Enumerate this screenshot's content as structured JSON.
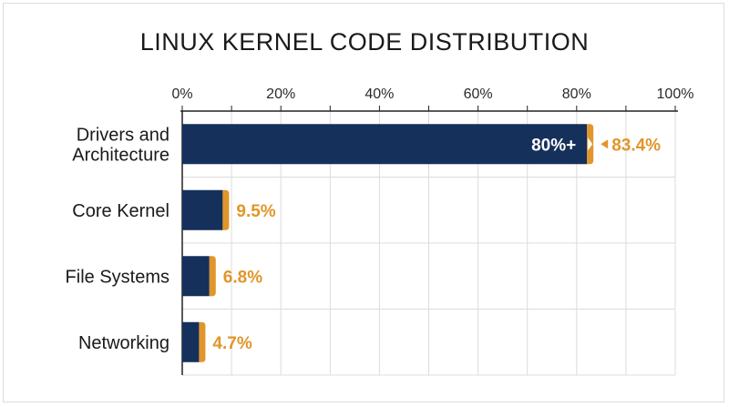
{
  "chart_data": {
    "type": "bar",
    "orientation": "horizontal",
    "title": "LINUX KERNEL CODE DISTRIBUTION",
    "xlim": [
      0,
      100
    ],
    "x_ticks": [
      "0%",
      "20%",
      "40%",
      "60%",
      "80%",
      "100%"
    ],
    "grid": true,
    "categories": [
      [
        "Drivers and",
        "Architecture"
      ],
      [
        "Core Kernel"
      ],
      [
        "File Systems"
      ],
      [
        "Networking"
      ]
    ],
    "values": [
      83.4,
      9.5,
      6.8,
      4.7
    ],
    "value_labels": [
      "83.4%",
      "9.5%",
      "6.8%",
      "4.7%"
    ],
    "annotations": [
      {
        "category_index": 0,
        "text": "80%+",
        "position": "inside-end"
      }
    ],
    "colors": {
      "bar": "#16305c",
      "accent": "#e0962a",
      "grid": "#dcdcdc",
      "axis": "#222222"
    }
  }
}
